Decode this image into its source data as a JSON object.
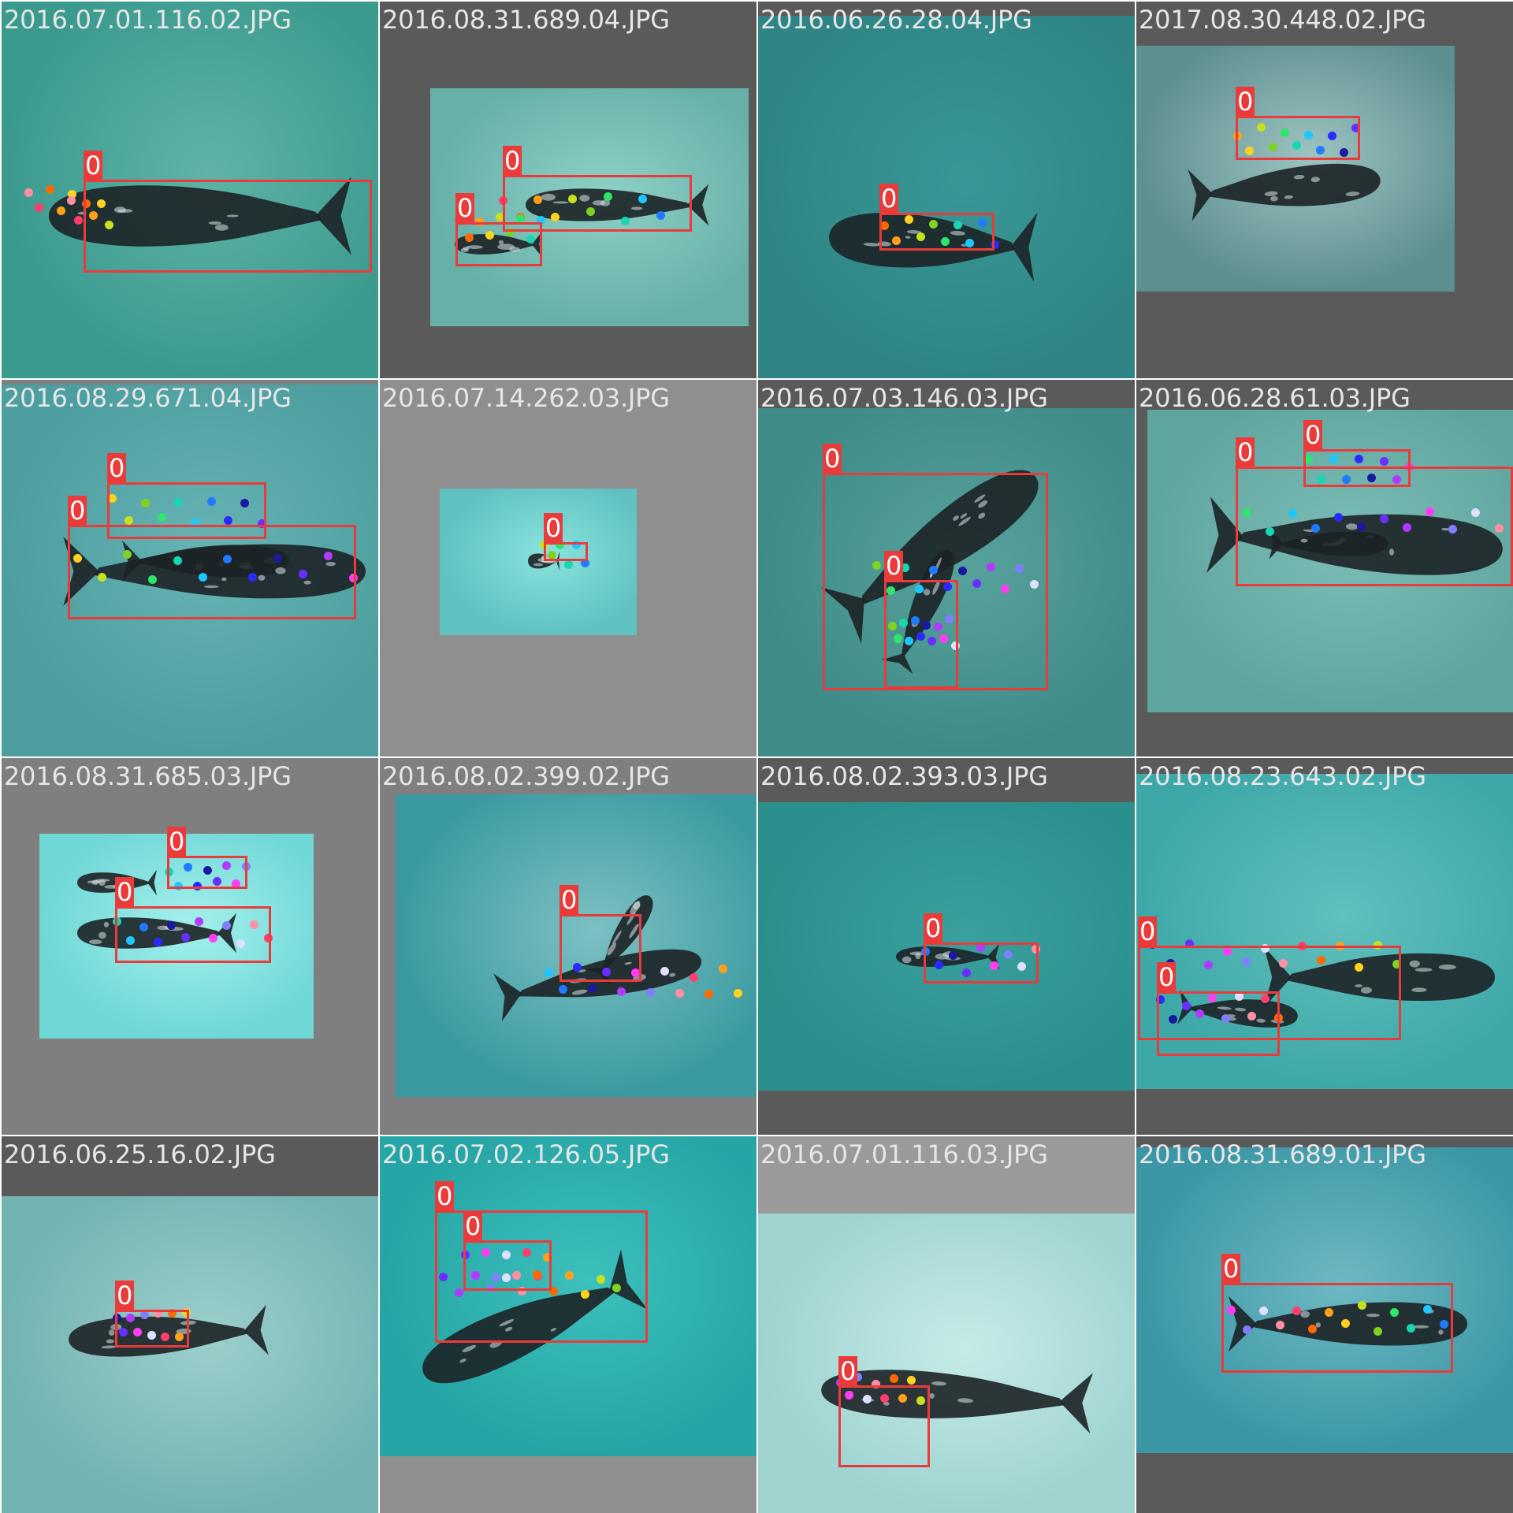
{
  "tiles": [
    {
      "filename": "2016.07.01.116.02.JPG",
      "boxes": [
        {
          "label": "0"
        }
      ]
    },
    {
      "filename": "2016.08.31.689.04.JPG",
      "boxes": [
        {
          "label": "0"
        },
        {
          "label": "0"
        }
      ]
    },
    {
      "filename": "2016.06.26.28.04.JPG",
      "boxes": [
        {
          "label": "0"
        }
      ]
    },
    {
      "filename": "2017.08.30.448.02.JPG",
      "boxes": [
        {
          "label": "0"
        }
      ]
    },
    {
      "filename": "2016.08.29.671.04.JPG",
      "boxes": [
        {
          "label": "0"
        },
        {
          "label": "0"
        }
      ]
    },
    {
      "filename": "2016.07.14.262.03.JPG",
      "boxes": [
        {
          "label": "0"
        }
      ]
    },
    {
      "filename": "2016.07.03.146.03.JPG",
      "boxes": [
        {
          "label": "0"
        },
        {
          "label": "0"
        }
      ]
    },
    {
      "filename": "2016.06.28.61.03.JPG",
      "boxes": [
        {
          "label": "0"
        },
        {
          "label": "0"
        }
      ]
    },
    {
      "filename": "2016.08.31.685.03.JPG",
      "boxes": [
        {
          "label": "0"
        },
        {
          "label": "0"
        }
      ]
    },
    {
      "filename": "2016.08.02.399.02.JPG",
      "boxes": [
        {
          "label": "0"
        }
      ]
    },
    {
      "filename": "2016.08.02.393.03.JPG",
      "boxes": [
        {
          "label": "0"
        }
      ]
    },
    {
      "filename": "2016.08.23.643.02.JPG",
      "boxes": [
        {
          "label": "0"
        },
        {
          "label": "0"
        }
      ]
    },
    {
      "filename": "2016.06.25.16.02.JPG",
      "boxes": [
        {
          "label": "0"
        }
      ]
    },
    {
      "filename": "2016.07.02.126.05.JPG",
      "boxes": [
        {
          "label": "0"
        },
        {
          "label": "0"
        }
      ]
    },
    {
      "filename": "2016.07.01.116.03.JPG",
      "boxes": [
        {
          "label": "0"
        }
      ]
    },
    {
      "filename": "2016.08.31.689.01.JPG",
      "boxes": [
        {
          "label": "0"
        }
      ]
    }
  ],
  "colors": {
    "box": "#ea3b3b",
    "keypoints": [
      "#ff8fa3",
      "#ff3d6e",
      "#ff6a00",
      "#ff9f1a",
      "#ffd21f",
      "#c8e01e",
      "#7ed321",
      "#2ee66b",
      "#18d6b0",
      "#1ec8ff",
      "#1f7bff",
      "#2a2aff",
      "#1a1a9e",
      "#6a2eff",
      "#b13bff",
      "#ff3df2",
      "#7f7fff",
      "#e0e0ff"
    ]
  }
}
